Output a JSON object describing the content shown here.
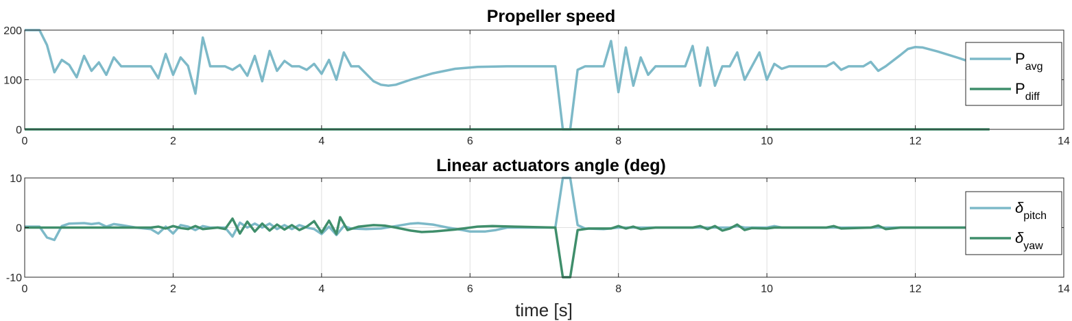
{
  "chart_data": [
    {
      "type": "line",
      "title": "Propeller speed",
      "xlim": [
        0,
        14
      ],
      "ylim": [
        0,
        200
      ],
      "xticks": [
        0,
        2,
        4,
        6,
        8,
        10,
        12,
        14
      ],
      "yticks": [
        0,
        100,
        200
      ],
      "grid": true,
      "legend_position": "top-right",
      "series": [
        {
          "name": "P_avg",
          "legend_main": "P",
          "legend_sub": "avg",
          "color": "#7db9c8",
          "points": [
            [
              0,
              200
            ],
            [
              0.2,
              200
            ],
            [
              0.3,
              170
            ],
            [
              0.4,
              115
            ],
            [
              0.5,
              140
            ],
            [
              0.6,
              130
            ],
            [
              0.7,
              105
            ],
            [
              0.8,
              148
            ],
            [
              0.9,
              118
            ],
            [
              1.0,
              135
            ],
            [
              1.1,
              110
            ],
            [
              1.2,
              145
            ],
            [
              1.3,
              127
            ],
            [
              1.7,
              127
            ],
            [
              1.8,
              103
            ],
            [
              1.9,
              152
            ],
            [
              2.0,
              110
            ],
            [
              2.1,
              145
            ],
            [
              2.2,
              128
            ],
            [
              2.3,
              72
            ],
            [
              2.4,
              185
            ],
            [
              2.5,
              127
            ],
            [
              2.7,
              127
            ],
            [
              2.8,
              120
            ],
            [
              2.9,
              130
            ],
            [
              3.0,
              108
            ],
            [
              3.1,
              148
            ],
            [
              3.2,
              97
            ],
            [
              3.3,
              158
            ],
            [
              3.4,
              118
            ],
            [
              3.5,
              138
            ],
            [
              3.6,
              127
            ],
            [
              3.7,
              127
            ],
            [
              3.8,
              120
            ],
            [
              3.9,
              132
            ],
            [
              4.0,
              112
            ],
            [
              4.1,
              140
            ],
            [
              4.2,
              100
            ],
            [
              4.3,
              155
            ],
            [
              4.4,
              127
            ],
            [
              4.5,
              127
            ],
            [
              4.7,
              97
            ],
            [
              4.8,
              90
            ],
            [
              4.9,
              88
            ],
            [
              5.0,
              90
            ],
            [
              5.2,
              100
            ],
            [
              5.5,
              113
            ],
            [
              5.8,
              122
            ],
            [
              6.1,
              126
            ],
            [
              6.5,
              127
            ],
            [
              7.15,
              127
            ],
            [
              7.25,
              0
            ],
            [
              7.35,
              0
            ],
            [
              7.45,
              120
            ],
            [
              7.55,
              127
            ],
            [
              7.8,
              127
            ],
            [
              7.9,
              178
            ],
            [
              8.0,
              75
            ],
            [
              8.1,
              165
            ],
            [
              8.2,
              88
            ],
            [
              8.3,
              145
            ],
            [
              8.4,
              110
            ],
            [
              8.5,
              127
            ],
            [
              8.9,
              127
            ],
            [
              9.0,
              168
            ],
            [
              9.1,
              88
            ],
            [
              9.2,
              165
            ],
            [
              9.3,
              88
            ],
            [
              9.4,
              127
            ],
            [
              9.5,
              127
            ],
            [
              9.6,
              155
            ],
            [
              9.7,
              100
            ],
            [
              9.9,
              155
            ],
            [
              10.0,
              100
            ],
            [
              10.1,
              132
            ],
            [
              10.2,
              122
            ],
            [
              10.3,
              127
            ],
            [
              10.8,
              127
            ],
            [
              10.9,
              135
            ],
            [
              11.0,
              120
            ],
            [
              11.1,
              127
            ],
            [
              11.3,
              127
            ],
            [
              11.4,
              136
            ],
            [
              11.5,
              118
            ],
            [
              11.6,
              127
            ],
            [
              11.8,
              150
            ],
            [
              11.9,
              162
            ],
            [
              12.0,
              166
            ],
            [
              12.1,
              165
            ],
            [
              12.3,
              157
            ],
            [
              12.6,
              143
            ],
            [
              12.8,
              133
            ],
            [
              12.95,
              130
            ],
            [
              13.0,
              128
            ]
          ]
        },
        {
          "name": "P_diff",
          "legend_main": "P",
          "legend_sub": "diff",
          "color": "#3f8e6b",
          "points": [
            [
              0,
              0
            ],
            [
              13,
              0
            ]
          ]
        }
      ]
    },
    {
      "type": "line",
      "title": "Linear actuators angle (deg)",
      "xlabel": "time [s]",
      "xlim": [
        0,
        14
      ],
      "ylim": [
        -10,
        10
      ],
      "xticks": [
        0,
        2,
        4,
        6,
        8,
        10,
        12,
        14
      ],
      "yticks": [
        -10,
        0,
        10
      ],
      "grid": true,
      "legend_position": "right",
      "series": [
        {
          "name": "δ_pitch",
          "legend_main": "δ",
          "legend_sub": "pitch",
          "color": "#7db9c8",
          "points": [
            [
              0,
              0.2
            ],
            [
              0.2,
              0.2
            ],
            [
              0.3,
              -2
            ],
            [
              0.4,
              -2.5
            ],
            [
              0.5,
              0.3
            ],
            [
              0.6,
              0.8
            ],
            [
              0.8,
              0.9
            ],
            [
              0.9,
              0.7
            ],
            [
              1.0,
              0.9
            ],
            [
              1.1,
              0.2
            ],
            [
              1.2,
              0.7
            ],
            [
              1.3,
              0.5
            ],
            [
              1.5,
              0
            ],
            [
              1.7,
              -0.3
            ],
            [
              1.8,
              -1.2
            ],
            [
              1.9,
              0.2
            ],
            [
              2.0,
              -1.2
            ],
            [
              2.1,
              0.5
            ],
            [
              2.2,
              0.2
            ],
            [
              2.3,
              -0.5
            ],
            [
              2.4,
              0.3
            ],
            [
              2.5,
              0
            ],
            [
              2.7,
              0
            ],
            [
              2.8,
              -1.8
            ],
            [
              2.9,
              1.0
            ],
            [
              3.0,
              0
            ],
            [
              3.1,
              0.8
            ],
            [
              3.2,
              0
            ],
            [
              3.3,
              0.8
            ],
            [
              3.4,
              -0.3
            ],
            [
              3.5,
              0.5
            ],
            [
              3.6,
              -0.3
            ],
            [
              3.7,
              0.5
            ],
            [
              3.8,
              0
            ],
            [
              3.9,
              -0.3
            ],
            [
              4.0,
              -1.3
            ],
            [
              4.1,
              0.2
            ],
            [
              4.2,
              -1.5
            ],
            [
              4.3,
              0.3
            ],
            [
              4.4,
              -0.2
            ],
            [
              4.6,
              -0.3
            ],
            [
              4.8,
              -0.2
            ],
            [
              5.0,
              0.3
            ],
            [
              5.2,
              0.8
            ],
            [
              5.3,
              0.9
            ],
            [
              5.5,
              0.6
            ],
            [
              5.7,
              0
            ],
            [
              5.9,
              -0.5
            ],
            [
              6.0,
              -0.8
            ],
            [
              6.2,
              -0.8
            ],
            [
              6.35,
              -0.5
            ],
            [
              6.5,
              0
            ],
            [
              7.15,
              0
            ],
            [
              7.25,
              10
            ],
            [
              7.35,
              10
            ],
            [
              7.45,
              0.5
            ],
            [
              7.55,
              -0.2
            ],
            [
              7.8,
              -0.3
            ],
            [
              8.0,
              0
            ],
            [
              9.5,
              0
            ],
            [
              9.6,
              0.3
            ],
            [
              9.7,
              0
            ],
            [
              10.0,
              0
            ],
            [
              10.1,
              0.3
            ],
            [
              10.2,
              0
            ],
            [
              13.0,
              0
            ]
          ]
        },
        {
          "name": "δ_yaw",
          "legend_main": "δ",
          "legend_sub": "yaw",
          "color": "#3f8e6b",
          "points": [
            [
              0,
              0
            ],
            [
              1.7,
              0
            ],
            [
              1.8,
              0.2
            ],
            [
              1.9,
              -0.2
            ],
            [
              2.0,
              0.3
            ],
            [
              2.1,
              -0.1
            ],
            [
              2.2,
              -0.3
            ],
            [
              2.3,
              0.3
            ],
            [
              2.4,
              -0.3
            ],
            [
              2.6,
              0
            ],
            [
              2.7,
              -0.3
            ],
            [
              2.8,
              1.8
            ],
            [
              2.9,
              -1.2
            ],
            [
              3.0,
              1.2
            ],
            [
              3.1,
              -0.8
            ],
            [
              3.2,
              0.8
            ],
            [
              3.3,
              -0.6
            ],
            [
              3.4,
              0.6
            ],
            [
              3.5,
              -0.4
            ],
            [
              3.6,
              0.5
            ],
            [
              3.7,
              -0.5
            ],
            [
              3.8,
              0.2
            ],
            [
              3.9,
              1.3
            ],
            [
              4.0,
              -1.0
            ],
            [
              4.1,
              1.4
            ],
            [
              4.2,
              -1.3
            ],
            [
              4.25,
              2.1
            ],
            [
              4.35,
              -0.5
            ],
            [
              4.5,
              0.2
            ],
            [
              4.7,
              0.5
            ],
            [
              4.85,
              0.4
            ],
            [
              5.0,
              0
            ],
            [
              5.2,
              -0.6
            ],
            [
              5.35,
              -0.9
            ],
            [
              5.5,
              -0.8
            ],
            [
              5.8,
              -0.4
            ],
            [
              6.1,
              0.2
            ],
            [
              6.3,
              0.3
            ],
            [
              6.6,
              0.2
            ],
            [
              7.15,
              0
            ],
            [
              7.25,
              -10
            ],
            [
              7.35,
              -10
            ],
            [
              7.45,
              -0.5
            ],
            [
              7.6,
              -0.2
            ],
            [
              7.9,
              -0.2
            ],
            [
              8.0,
              0.3
            ],
            [
              8.1,
              -0.2
            ],
            [
              8.2,
              0.2
            ],
            [
              8.3,
              -0.3
            ],
            [
              8.5,
              0
            ],
            [
              9.0,
              0
            ],
            [
              9.1,
              0.3
            ],
            [
              9.2,
              -0.3
            ],
            [
              9.3,
              0.3
            ],
            [
              9.4,
              -0.6
            ],
            [
              9.5,
              -0.2
            ],
            [
              9.6,
              0.6
            ],
            [
              9.7,
              -0.5
            ],
            [
              9.8,
              -0.1
            ],
            [
              10.0,
              -0.2
            ],
            [
              10.1,
              0
            ],
            [
              10.8,
              0
            ],
            [
              10.9,
              0.3
            ],
            [
              11.0,
              -0.2
            ],
            [
              11.4,
              0
            ],
            [
              11.5,
              0.4
            ],
            [
              11.6,
              -0.3
            ],
            [
              11.8,
              0
            ],
            [
              13.0,
              0
            ]
          ]
        }
      ]
    }
  ]
}
